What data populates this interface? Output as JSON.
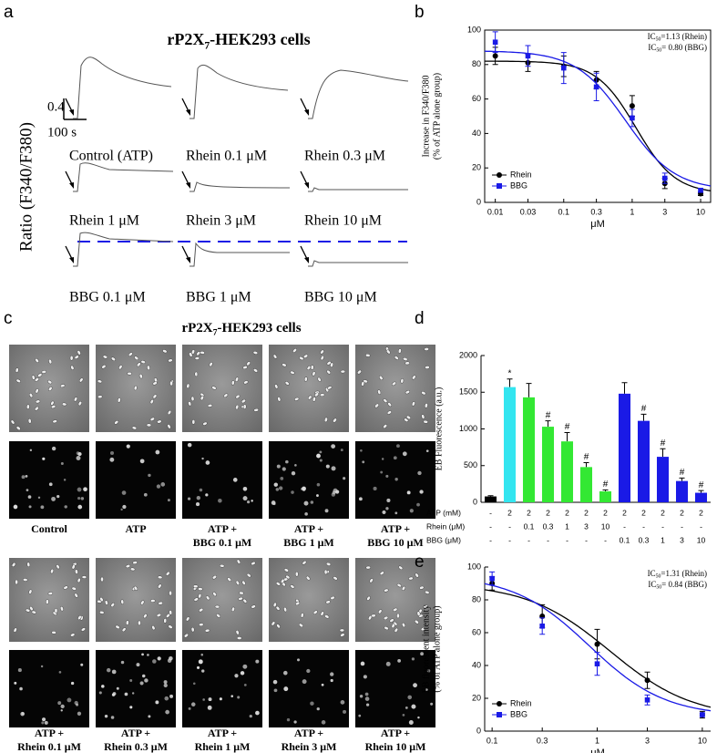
{
  "panel_a": {
    "label": "a",
    "title": {
      "main": "rP2X",
      "sub": "7",
      "rest": "-HEK293 cells"
    },
    "y_label": "Ratio (F340/F380)",
    "scale_y": "0.4",
    "scale_x": "100 s",
    "traces": [
      "Control (ATP)",
      "Rhein 0.1 μM",
      "Rhein 0.3 μM",
      "Rhein 1 μM",
      "Rhein 3 μM",
      "Rhein 10 μM",
      "BBG 0.1 μM",
      "BBG 1 μM",
      "BBG 10 μM"
    ]
  },
  "panel_c": {
    "label": "c",
    "title": {
      "main": "rP2X",
      "sub": "7",
      "rest": "-HEK293 cells"
    },
    "labels": [
      [
        [
          "Control"
        ],
        [
          "ATP"
        ],
        [
          "ATP +",
          "BBG 0.1 μM"
        ],
        [
          "ATP +",
          "BBG 1 μM"
        ],
        [
          "ATP +",
          "BBG 10 μM"
        ]
      ],
      [
        [
          "ATP +",
          "Rhein 0.1 μM"
        ],
        [
          "ATP +",
          "Rhein 0.3 μM"
        ],
        [
          "ATP +",
          "Rhein 1 μM"
        ],
        [
          "ATP +",
          "Rhein 3 μM"
        ],
        [
          "ATP +",
          "Rhein 10 μM"
        ]
      ]
    ]
  },
  "chart_data": [
    {
      "type": "scatter",
      "label": "b",
      "log_x": true,
      "frame": true,
      "x": [
        0.01,
        0.03,
        0.1,
        0.3,
        1,
        3,
        10
      ],
      "xlim": [
        0.007,
        14
      ],
      "xticks": [
        0.01,
        0.03,
        0.1,
        0.3,
        1,
        3,
        10
      ],
      "ylim": [
        0,
        100
      ],
      "yticks": [
        0,
        20,
        40,
        60,
        80,
        100
      ],
      "xlabel": "μM",
      "ylabel": [
        "Increase in F340/F380",
        "(% of ATP alone group)"
      ],
      "legend": "lower left",
      "series": [
        {
          "name": "Rhein",
          "color": "#000000",
          "marker": "circle",
          "values": [
            85,
            81,
            79,
            71,
            56,
            11,
            5
          ],
          "errors": [
            5,
            5,
            6,
            5,
            6,
            3,
            1
          ],
          "fit": {
            "top": 82,
            "bottom": 5,
            "ic50": 1.13,
            "hill": 1.5
          }
        },
        {
          "name": "BBG",
          "color": "#1a1ae6",
          "marker": "square",
          "values": [
            93,
            85,
            78,
            67,
            49,
            14,
            7
          ],
          "errors": [
            6,
            6,
            9,
            8,
            5,
            3,
            1
          ],
          "fit": {
            "top": 88,
            "bottom": 7,
            "ic50": 0.8,
            "hill": 1.2
          }
        }
      ],
      "annotations": [
        {
          "text": "IC",
          "sub": "50",
          "rest": "=1.13 (Rhein)",
          "color": "#000000"
        },
        {
          "text": "IC",
          "sub": "50",
          "rest": "= 0.80 (BBG)",
          "color": "#1a1ae6"
        }
      ]
    },
    {
      "type": "bar",
      "label": "d",
      "frame": false,
      "values": [
        80,
        1570,
        1430,
        1030,
        830,
        480,
        150,
        1480,
        1110,
        620,
        290,
        130
      ],
      "errors": [
        10,
        110,
        190,
        80,
        120,
        60,
        20,
        150,
        90,
        110,
        40,
        30
      ],
      "colors": [
        "#000000",
        "#33e5f0",
        "#33e833",
        "#33e833",
        "#33e833",
        "#33e833",
        "#33e833",
        "#1a1ae6",
        "#1a1ae6",
        "#1a1ae6",
        "#1a1ae6",
        "#1a1ae6"
      ],
      "marks": [
        null,
        "*",
        null,
        "#",
        "#",
        "#",
        "#",
        null,
        "#",
        "#",
        "#",
        "#"
      ],
      "ylim": [
        0,
        2000
      ],
      "yticks": [
        0,
        500,
        1000,
        1500,
        2000
      ],
      "ylabel": "EB Fluorescence (a.u.)",
      "table": [
        {
          "header": "ATP (mM)",
          "cells": [
            "-",
            "2",
            "2",
            "2",
            "2",
            "2",
            "2",
            "2",
            "2",
            "2",
            "2",
            "2"
          ]
        },
        {
          "header": "Rhein (μM)",
          "cells": [
            "-",
            "-",
            "0.1",
            "0.3",
            "1",
            "3",
            "10",
            "-",
            "-",
            "-",
            "-",
            "-"
          ]
        },
        {
          "header": "BBG (μM)",
          "cells": [
            "-",
            "-",
            "-",
            "-",
            "-",
            "-",
            "-",
            "0.1",
            "0.3",
            "1",
            "3",
            "10"
          ]
        }
      ]
    },
    {
      "type": "scatter",
      "label": "e",
      "log_x": true,
      "frame": false,
      "x": [
        0.1,
        0.3,
        1,
        3,
        10
      ],
      "xlim": [
        0.085,
        12
      ],
      "xticks": [
        0.1,
        0.3,
        1,
        3,
        10
      ],
      "ylim": [
        0,
        100
      ],
      "yticks": [
        0,
        20,
        40,
        60,
        80,
        100
      ],
      "xlabel": "μM",
      "ylabel": [
        "EB fluorescent intensity",
        "(% of ATP alone group)"
      ],
      "legend": "lower left",
      "series": [
        {
          "name": "Rhein",
          "color": "#000000",
          "marker": "circle",
          "values": [
            90,
            70,
            53,
            31,
            10
          ],
          "errors": [
            4,
            7,
            9,
            5,
            2
          ],
          "fit": {
            "top": 90,
            "bottom": 8,
            "ic50": 1.31,
            "hill": 1.1
          }
        },
        {
          "name": "BBG",
          "color": "#1a1ae6",
          "marker": "square",
          "values": [
            93,
            64,
            41,
            19,
            10
          ],
          "errors": [
            4,
            5,
            7,
            3,
            1
          ],
          "fit": {
            "top": 95,
            "bottom": 9,
            "ic50": 0.84,
            "hill": 1.2
          }
        }
      ],
      "annotations": [
        {
          "text": "IC",
          "sub": "50",
          "rest": "=1.31 (Rhein)",
          "color": "#000000"
        },
        {
          "text": "IC",
          "sub": "50",
          "rest": "= 0.84 (BBG)",
          "color": "#1a1ae6"
        }
      ]
    }
  ]
}
